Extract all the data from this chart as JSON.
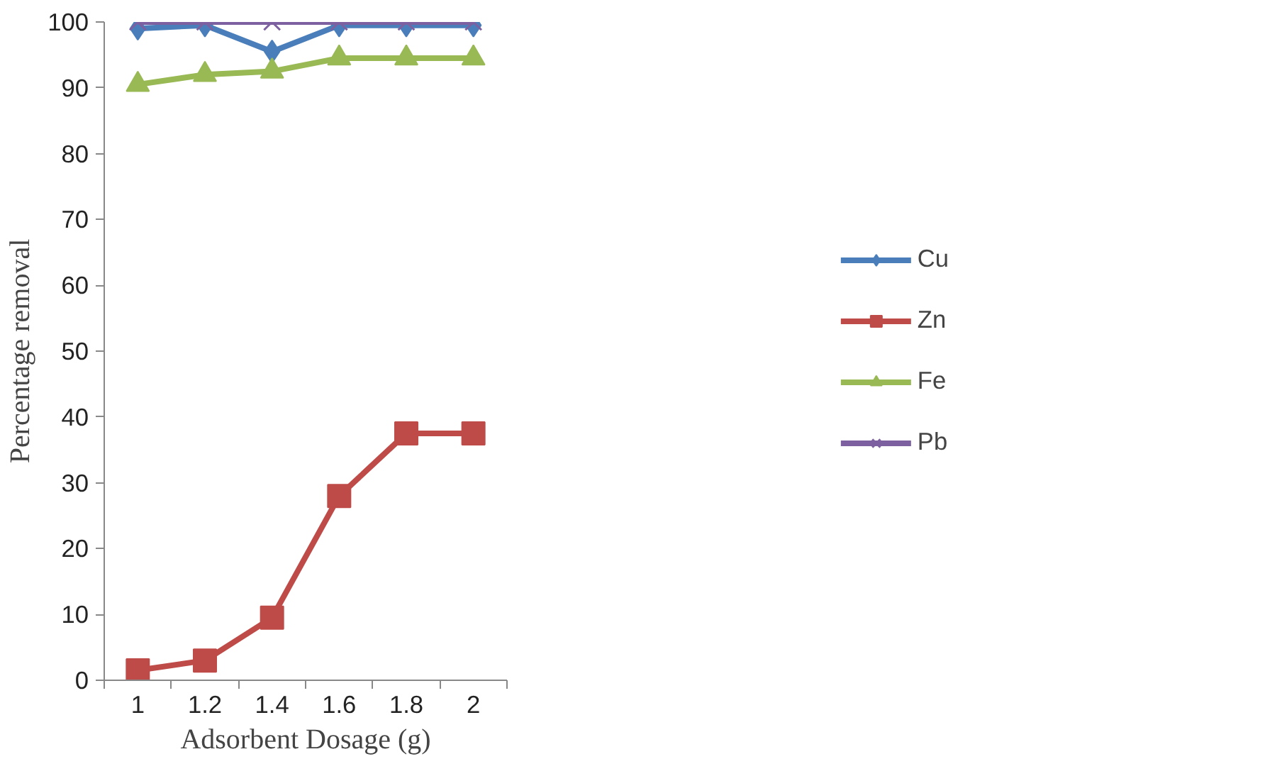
{
  "chart_data": {
    "type": "line",
    "xlabel": "Adsorbent Dosage (g)",
    "ylabel": "Percentage removal",
    "categories": [
      "1",
      "1.2",
      "1.4",
      "1.6",
      "1.8",
      "2"
    ],
    "ylim": [
      0,
      100
    ],
    "yticks": [
      0,
      10,
      20,
      30,
      40,
      50,
      60,
      70,
      80,
      90,
      100
    ],
    "grid": false,
    "legend": "right",
    "series": [
      {
        "name": "Cu",
        "color": "#4a7ebb",
        "marker": "diamond",
        "values": [
          99,
          99.5,
          95.5,
          99.5,
          99.5,
          99.5
        ]
      },
      {
        "name": "Zn",
        "color": "#be4b48",
        "marker": "square",
        "values": [
          1.5,
          3,
          9.5,
          28,
          37.5,
          37.5
        ]
      },
      {
        "name": "Fe",
        "color": "#98b954",
        "marker": "triangle",
        "values": [
          90.5,
          92,
          92.5,
          94.5,
          94.5,
          94.5
        ]
      },
      {
        "name": "Pb",
        "color": "#7d60a0",
        "marker": "cross",
        "values": [
          100,
          100,
          100,
          100,
          100,
          100
        ]
      }
    ]
  }
}
